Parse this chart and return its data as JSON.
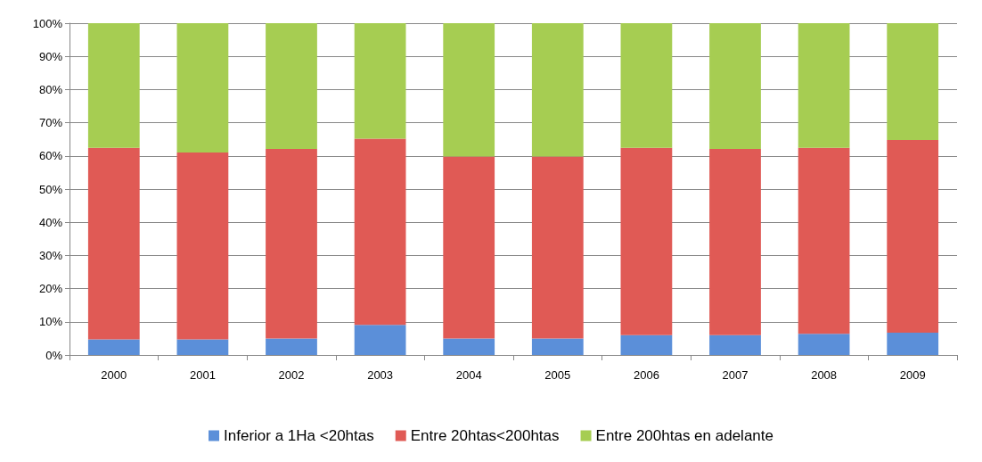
{
  "chart_data": {
    "type": "bar",
    "stacked": true,
    "categories": [
      "2000",
      "2001",
      "2002",
      "2003",
      "2004",
      "2005",
      "2006",
      "2007",
      "2008",
      "2009"
    ],
    "series": [
      {
        "name": "Inferior a 1Ha <20htas",
        "color": "#5b8fd9",
        "values": [
          4.7,
          4.7,
          5.0,
          9.1,
          5.0,
          5.0,
          6.0,
          6.0,
          6.4,
          6.7
        ]
      },
      {
        "name": "Entre 20htas<200htas",
        "color": "#e05a55",
        "values": [
          57.7,
          56.3,
          57.1,
          56.1,
          54.8,
          54.8,
          56.4,
          56.1,
          56.0,
          58.1
        ]
      },
      {
        "name": "Entre 200htas en adelante",
        "color": "#a6cd52",
        "values": [
          37.6,
          39.0,
          37.9,
          34.8,
          40.2,
          40.2,
          37.6,
          37.9,
          37.6,
          35.2
        ]
      }
    ],
    "ylim": [
      0,
      100
    ],
    "yticks": [
      {
        "value": 0,
        "label": "0%"
      },
      {
        "value": 10,
        "label": "10%"
      },
      {
        "value": 20,
        "label": "20%"
      },
      {
        "value": 30,
        "label": "30%"
      },
      {
        "value": 40,
        "label": "40%"
      },
      {
        "value": 50,
        "label": "50%"
      },
      {
        "value": 60,
        "label": "60%"
      },
      {
        "value": 70,
        "label": "70%"
      },
      {
        "value": 80,
        "label": "80%"
      },
      {
        "value": 90,
        "label": "90%"
      },
      {
        "value": 100,
        "label": "100%"
      }
    ],
    "grid": "y",
    "legend": "bottom"
  }
}
